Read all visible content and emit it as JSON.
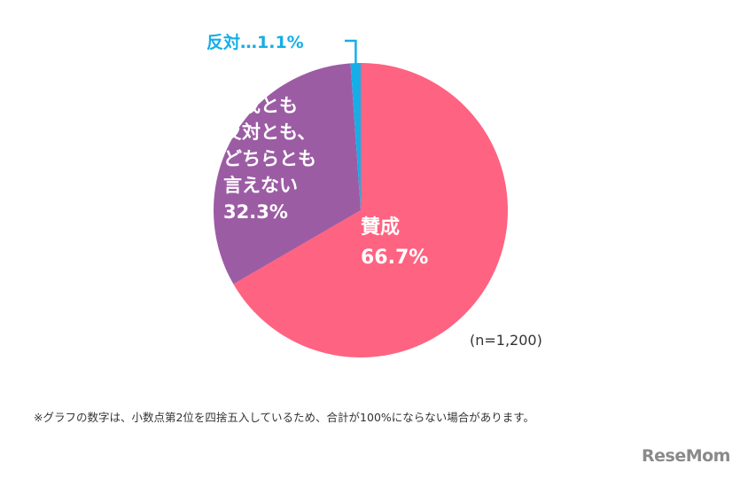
{
  "chart_data": {
    "type": "pie",
    "start_angle_deg": 0,
    "direction": "clockwise",
    "slices": [
      {
        "label": "賛成",
        "value": 66.7,
        "value_text": "66.7%",
        "color": "#fe6381"
      },
      {
        "label": "賛成とも反対とも、どちらとも言えない",
        "label_lines": [
          "賛成とも",
          "反対とも、",
          "どちらとも",
          "言えない"
        ],
        "value": 32.3,
        "value_text": "32.3%",
        "color": "#9c5ca4"
      },
      {
        "label": "反対",
        "value": 1.1,
        "value_text": "反対…1.1%",
        "color": "#16aee6"
      }
    ],
    "sample_size": "(n=1,200)"
  },
  "footnote": "※グラフの数字は、小数点第2位を四捨五入しているため、合計が100%にならない場合があります。",
  "logo": "ReseMom"
}
